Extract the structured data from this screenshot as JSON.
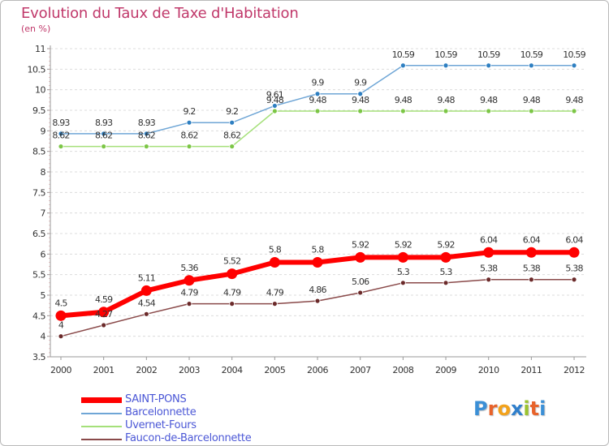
{
  "title": "Evolution du Taux de Taxe d'Habitation",
  "subtitle": "(en %)",
  "logo": {
    "text": "Proxiti",
    "letter_colors": [
      "#3b8fd6",
      "#e8632b",
      "#f2a21b",
      "#2f7fcc",
      "#9bc32f",
      "#e8632b",
      "#3b8fd6"
    ]
  },
  "chart_data": {
    "type": "line",
    "title": "Evolution du Taux de Taxe d'Habitation",
    "ylabel": "(en %)",
    "xlabel": "",
    "x": [
      "2000",
      "2001",
      "2002",
      "2003",
      "2004",
      "2005",
      "2006",
      "2007",
      "2008",
      "2009",
      "2010",
      "2011",
      "2012"
    ],
    "ylim": [
      3.5,
      11
    ],
    "yticks": [
      "3.5",
      "4",
      "4.5",
      "5",
      "5.5",
      "6",
      "6.5",
      "7",
      "7.5",
      "8",
      "8.5",
      "9",
      "9.5",
      "10",
      "10.5",
      "11"
    ],
    "grid": "horizontal dashed",
    "legend_position": "bottom-left",
    "series": [
      {
        "name": "SAINT-PONS",
        "color": "#ff0000",
        "emphasis": "thick",
        "values": [
          4.5,
          4.59,
          5.11,
          5.36,
          5.52,
          5.8,
          5.8,
          5.92,
          5.92,
          5.92,
          6.04,
          6.04,
          6.04
        ],
        "labels": [
          "4.5",
          "4.59",
          "5.11",
          "5.36",
          "5.52",
          "5.8",
          "5.8",
          "5.92",
          "5.92",
          "5.92",
          "6.04",
          "6.04",
          "6.04"
        ]
      },
      {
        "name": "Barcelonnette",
        "color": "#6fa6d6",
        "point_color": "#2e7fc1",
        "values": [
          8.93,
          8.93,
          8.93,
          9.2,
          9.2,
          9.61,
          9.9,
          9.9,
          10.59,
          10.59,
          10.59,
          10.59,
          10.59
        ],
        "labels": [
          "8.93",
          "8.93",
          "8.93",
          "9.2",
          "9.2",
          "9.61",
          "9.9",
          "9.9",
          "10.59",
          "10.59",
          "10.59",
          "10.59",
          "10.59"
        ]
      },
      {
        "name": "Uvernet-Fours",
        "color": "#a5e07a",
        "point_color": "#7cc646",
        "values": [
          8.62,
          8.62,
          8.62,
          8.62,
          8.62,
          9.48,
          9.48,
          9.48,
          9.48,
          9.48,
          9.48,
          9.48,
          9.48
        ],
        "labels": [
          "8.62",
          "8.62",
          "8.62",
          "8.62",
          "8.62",
          "9.48",
          "9.48",
          "9.48",
          "9.48",
          "9.48",
          "9.48",
          "9.48",
          "9.48"
        ]
      },
      {
        "name": "Faucon-de-Barcelonnette",
        "color": "#8a4a4a",
        "point_color": "#6b2a2a",
        "values": [
          4,
          4.27,
          4.54,
          4.79,
          4.79,
          4.79,
          4.86,
          5.06,
          5.3,
          5.3,
          5.38,
          5.38,
          5.38
        ],
        "labels": [
          "4",
          "4.27",
          "4.54",
          "4.79",
          "4.79",
          "4.79",
          "4.86",
          "5.06",
          "5.3",
          "5.3",
          "5.38",
          "5.38",
          "5.38"
        ]
      }
    ]
  }
}
